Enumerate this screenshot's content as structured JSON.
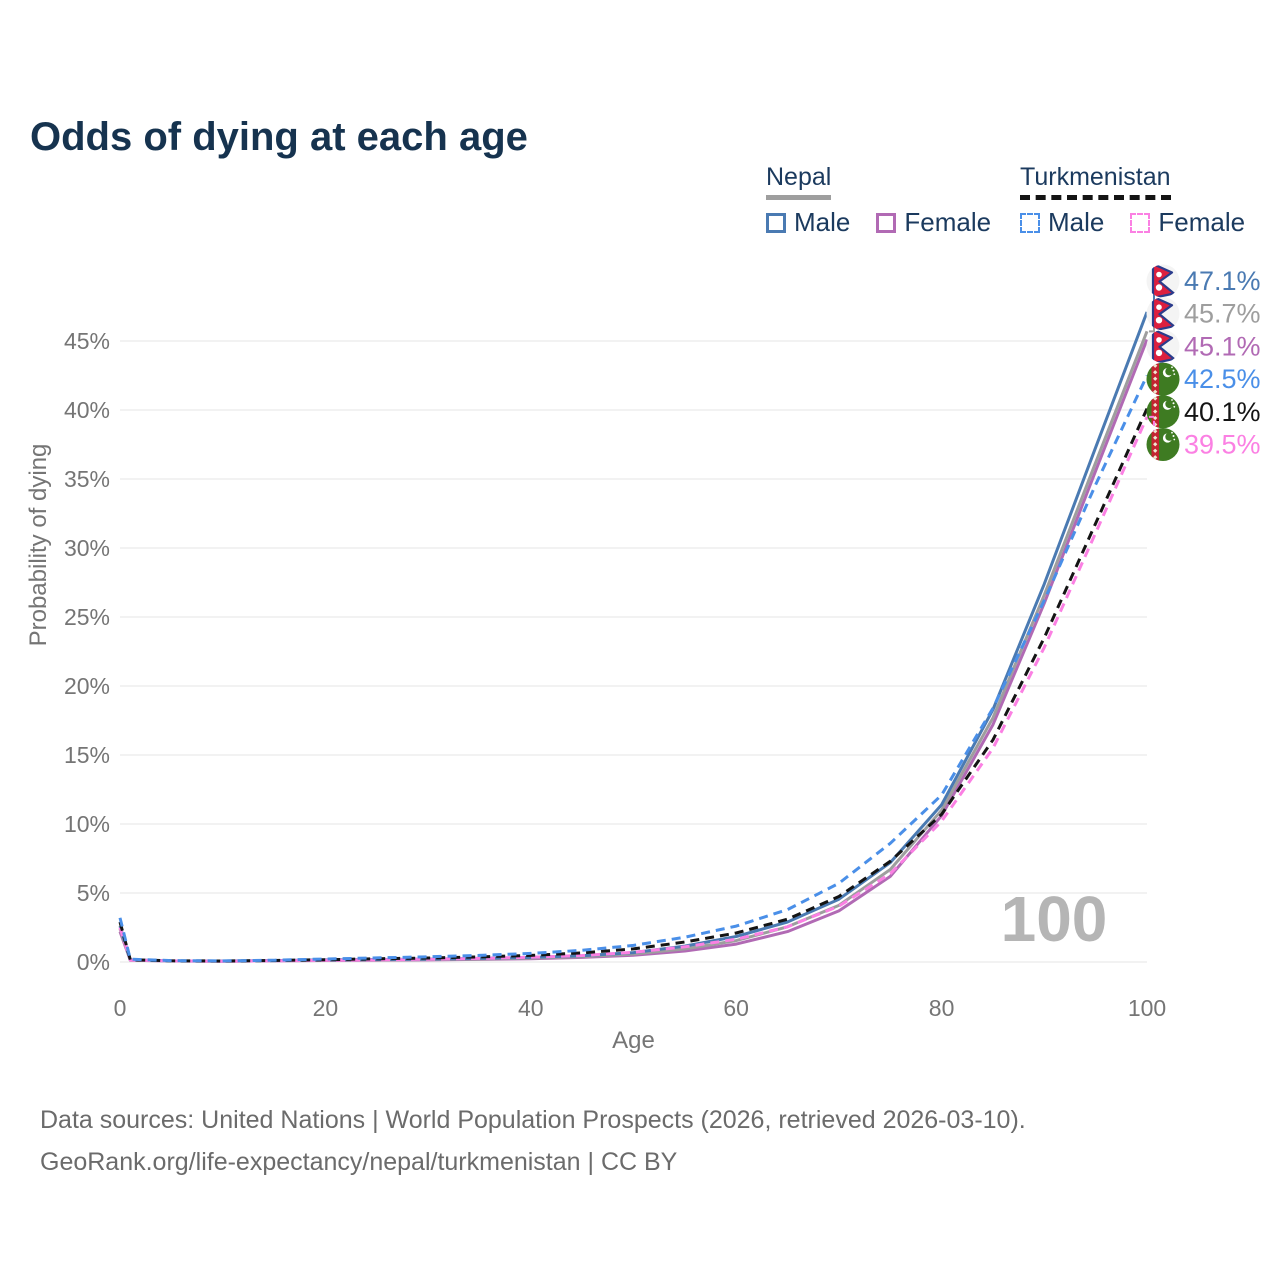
{
  "title": "Odds of dying at each age",
  "legend": {
    "groups": [
      {
        "label": "Nepal",
        "underline_style": "solid",
        "underline_color": "#9e9e9e",
        "items": [
          {
            "label": "Male",
            "color": "#4a7ab2",
            "dashed": false
          },
          {
            "label": "Female",
            "color": "#b16ab4",
            "dashed": false
          }
        ]
      },
      {
        "label": "Turkmenistan",
        "underline_style": "dashed",
        "underline_color": "#141414",
        "items": [
          {
            "label": "Male",
            "color": "#4a8fe8",
            "dashed": true
          },
          {
            "label": "Female",
            "color": "#fb80e3",
            "dashed": true
          }
        ]
      }
    ]
  },
  "chart_data": {
    "type": "line",
    "title": "Odds of dying at each age",
    "xlabel": "Age",
    "ylabel": "Probability of dying",
    "x_ticks": [
      0,
      20,
      40,
      60,
      80,
      100
    ],
    "y_ticks_pct": [
      0,
      5,
      10,
      15,
      20,
      25,
      30,
      35,
      40,
      45
    ],
    "xlim": [
      0,
      100
    ],
    "ylim_pct": [
      0,
      49
    ],
    "grid": "horizontal",
    "legend_position": "top-right",
    "age_cursor": "100",
    "x": [
      0,
      1,
      5,
      10,
      15,
      20,
      25,
      30,
      35,
      40,
      45,
      50,
      55,
      60,
      65,
      70,
      75,
      80,
      85,
      90,
      95,
      100
    ],
    "series": [
      {
        "id": "nepal-male",
        "country": "Nepal",
        "sex": "Male",
        "color": "#4a7ab2",
        "dashed": false,
        "flag": "nepal",
        "end_label": "47.1%",
        "end_value_pct": 47.1,
        "values_pct": [
          2.6,
          0.15,
          0.08,
          0.07,
          0.1,
          0.15,
          0.18,
          0.21,
          0.26,
          0.33,
          0.46,
          0.68,
          1.15,
          1.85,
          2.9,
          4.55,
          7.2,
          11.4,
          18.3,
          27.4,
          37.3,
          47.1
        ]
      },
      {
        "id": "nepal-both",
        "country": "Nepal",
        "sex": "Both",
        "color": "#9e9e9e",
        "dashed": false,
        "flag": "nepal",
        "end_label": "45.7%",
        "end_value_pct": 45.7,
        "values_pct": [
          2.4,
          0.14,
          0.07,
          0.06,
          0.09,
          0.13,
          0.15,
          0.18,
          0.22,
          0.28,
          0.39,
          0.58,
          0.95,
          1.55,
          2.55,
          4.1,
          6.7,
          11.0,
          17.7,
          26.6,
          36.2,
          45.7
        ]
      },
      {
        "id": "nepal-female",
        "country": "Nepal",
        "sex": "Female",
        "color": "#b16ab4",
        "dashed": false,
        "flag": "nepal",
        "end_label": "45.1%",
        "end_value_pct": 45.1,
        "values_pct": [
          2.2,
          0.13,
          0.07,
          0.06,
          0.08,
          0.11,
          0.13,
          0.15,
          0.19,
          0.24,
          0.33,
          0.49,
          0.8,
          1.3,
          2.2,
          3.7,
          6.2,
          10.6,
          17.2,
          26.0,
          35.6,
          45.1
        ]
      },
      {
        "id": "turkmenistan-male",
        "country": "Turkmenistan",
        "sex": "Male",
        "color": "#4a8fe8",
        "dashed": true,
        "flag": "turkmenistan",
        "end_label": "42.5%",
        "end_value_pct": 42.5,
        "values_pct": [
          3.2,
          0.2,
          0.1,
          0.08,
          0.13,
          0.22,
          0.3,
          0.38,
          0.48,
          0.62,
          0.85,
          1.2,
          1.8,
          2.6,
          3.8,
          5.7,
          8.6,
          12.1,
          18.4,
          26.2,
          34.6,
          42.5
        ]
      },
      {
        "id": "turkmenistan-both",
        "country": "Turkmenistan",
        "sex": "Both",
        "color": "#141414",
        "dashed": true,
        "flag": "turkmenistan",
        "end_label": "40.1%",
        "end_value_pct": 40.1,
        "values_pct": [
          2.9,
          0.17,
          0.09,
          0.07,
          0.11,
          0.17,
          0.23,
          0.29,
          0.37,
          0.48,
          0.66,
          0.95,
          1.45,
          2.1,
          3.1,
          4.75,
          7.3,
          10.7,
          16.1,
          23.5,
          31.8,
          40.1
        ]
      },
      {
        "id": "turkmenistan-female",
        "country": "Turkmenistan",
        "sex": "Female",
        "color": "#fb80e3",
        "dashed": true,
        "flag": "turkmenistan",
        "end_label": "39.5%",
        "end_value_pct": 39.5,
        "values_pct": [
          2.5,
          0.14,
          0.08,
          0.06,
          0.09,
          0.12,
          0.16,
          0.2,
          0.26,
          0.34,
          0.47,
          0.7,
          1.1,
          1.65,
          2.55,
          4.05,
          6.4,
          10.2,
          15.5,
          22.8,
          31.1,
          39.5
        ]
      }
    ]
  },
  "footer": {
    "line1": "Data sources: United Nations | World Population Prospects (2026, retrieved 2026-03-10).",
    "line2": "GeoRank.org/life-expectancy/nepal/turkmenistan | CC BY"
  }
}
